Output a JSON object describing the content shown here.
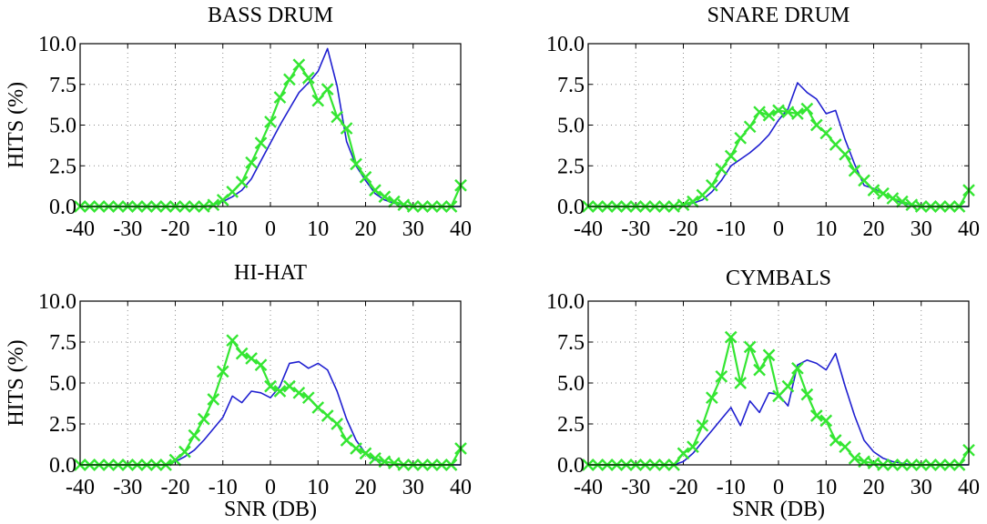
{
  "colors": {
    "blue_series": "#1f1fd0",
    "green_series": "#34e632",
    "axis": "#000000",
    "grid": "#8a8a8a"
  },
  "chart_data": [
    {
      "type": "line",
      "title": "BASS DRUM",
      "xlabel": "",
      "ylabel": "HITS (%)",
      "x_ticks": [
        "-40",
        "-30",
        "-20",
        "-10",
        "0",
        "10",
        "20",
        "30",
        "40"
      ],
      "y_ticks": [
        "0.0",
        "2.5",
        "5.0",
        "7.5",
        "10.0"
      ],
      "xlim": [
        -40,
        40
      ],
      "ylim": [
        0,
        10
      ],
      "grid": true,
      "series": [
        {
          "color": "#1f1fd0",
          "marker": "none",
          "x": [
            -40,
            -38,
            -36,
            -34,
            -32,
            -30,
            -28,
            -26,
            -24,
            -22,
            -20,
            -18,
            -16,
            -14,
            -12,
            -10,
            -8,
            -6,
            -4,
            -2,
            0,
            2,
            4,
            6,
            8,
            10,
            12,
            14,
            16,
            18,
            20,
            22,
            24,
            26,
            28,
            30,
            32,
            34,
            36,
            38,
            40
          ],
          "y": [
            0,
            0,
            0,
            0,
            0,
            0,
            0,
            0,
            0,
            0,
            0,
            0,
            0,
            0,
            0.1,
            0.3,
            0.6,
            1.0,
            1.7,
            2.8,
            3.9,
            5.0,
            6.0,
            7.0,
            7.6,
            8.3,
            9.7,
            7.4,
            4.0,
            2.5,
            1.6,
            0.8,
            0.4,
            0.2,
            0.1,
            0,
            0,
            0,
            0,
            0,
            0
          ]
        },
        {
          "color": "#34e632",
          "marker": "x",
          "x": [
            -40,
            -38,
            -36,
            -34,
            -32,
            -30,
            -28,
            -26,
            -24,
            -22,
            -20,
            -18,
            -16,
            -14,
            -12,
            -10,
            -8,
            -6,
            -4,
            -2,
            0,
            2,
            4,
            6,
            8,
            10,
            12,
            14,
            16,
            18,
            20,
            22,
            24,
            26,
            28,
            30,
            32,
            34,
            36,
            38,
            40
          ],
          "y": [
            0,
            0,
            0,
            0,
            0,
            0,
            0,
            0,
            0,
            0,
            0,
            0,
            0,
            0,
            0.1,
            0.4,
            0.9,
            1.5,
            2.7,
            3.9,
            5.2,
            6.7,
            7.8,
            8.7,
            7.9,
            6.5,
            7.2,
            5.5,
            4.8,
            2.6,
            1.8,
            1.0,
            0.6,
            0.3,
            0.1,
            0,
            0,
            0,
            0,
            0,
            1.3
          ]
        }
      ]
    },
    {
      "type": "line",
      "title": "SNARE DRUM",
      "xlabel": "",
      "ylabel": "",
      "x_ticks": [
        "-40",
        "-30",
        "-20",
        "-10",
        "0",
        "10",
        "20",
        "30",
        "40"
      ],
      "y_ticks": [
        "0.0",
        "2.5",
        "5.0",
        "7.5",
        "10.0"
      ],
      "xlim": [
        -40,
        40
      ],
      "ylim": [
        0,
        10
      ],
      "grid": true,
      "series": [
        {
          "color": "#1f1fd0",
          "marker": "none",
          "x": [
            -40,
            -38,
            -36,
            -34,
            -32,
            -30,
            -28,
            -26,
            -24,
            -22,
            -20,
            -18,
            -16,
            -14,
            -12,
            -10,
            -8,
            -6,
            -4,
            -2,
            0,
            2,
            4,
            6,
            8,
            10,
            12,
            14,
            16,
            18,
            20,
            22,
            24,
            26,
            28,
            30,
            32,
            34,
            36,
            38,
            40
          ],
          "y": [
            0,
            0,
            0,
            0,
            0,
            0,
            0,
            0,
            0,
            0,
            0.1,
            0.2,
            0.4,
            0.9,
            1.6,
            2.5,
            2.9,
            3.3,
            3.8,
            4.4,
            5.3,
            6.0,
            7.6,
            7.0,
            6.6,
            5.7,
            5.9,
            4.1,
            2.6,
            1.3,
            1.1,
            0.8,
            0.5,
            0.2,
            0.1,
            0,
            0,
            0,
            0,
            0,
            0
          ]
        },
        {
          "color": "#34e632",
          "marker": "x",
          "x": [
            -40,
            -38,
            -36,
            -34,
            -32,
            -30,
            -28,
            -26,
            -24,
            -22,
            -20,
            -18,
            -16,
            -14,
            -12,
            -10,
            -8,
            -6,
            -4,
            -2,
            0,
            2,
            4,
            6,
            8,
            10,
            12,
            14,
            16,
            18,
            20,
            22,
            24,
            26,
            28,
            30,
            32,
            34,
            36,
            38,
            40
          ],
          "y": [
            0,
            0,
            0,
            0,
            0,
            0,
            0,
            0,
            0,
            0,
            0.1,
            0.3,
            0.7,
            1.3,
            2.3,
            3.1,
            4.2,
            4.9,
            5.8,
            5.6,
            5.9,
            5.8,
            5.7,
            6.0,
            5.0,
            4.5,
            3.8,
            3.2,
            2.2,
            1.6,
            1.0,
            0.8,
            0.5,
            0.3,
            0.1,
            0,
            0,
            0,
            0,
            0,
            1.0
          ]
        }
      ]
    },
    {
      "type": "line",
      "title": "HI-HAT",
      "xlabel": "SNR (DB)",
      "ylabel": "HITS (%)",
      "x_ticks": [
        "-40",
        "-30",
        "-20",
        "-10",
        "0",
        "10",
        "20",
        "30",
        "40"
      ],
      "y_ticks": [
        "0.0",
        "2.5",
        "5.0",
        "7.5",
        "10.0"
      ],
      "xlim": [
        -40,
        40
      ],
      "ylim": [
        0,
        10
      ],
      "grid": true,
      "series": [
        {
          "color": "#1f1fd0",
          "marker": "none",
          "x": [
            -40,
            -38,
            -36,
            -34,
            -32,
            -30,
            -28,
            -26,
            -24,
            -22,
            -20,
            -18,
            -16,
            -14,
            -12,
            -10,
            -8,
            -6,
            -4,
            -2,
            0,
            2,
            4,
            6,
            8,
            10,
            12,
            14,
            16,
            18,
            20,
            22,
            24,
            26,
            28,
            30,
            32,
            34,
            36,
            38,
            40
          ],
          "y": [
            0,
            0,
            0,
            0,
            0,
            0,
            0,
            0,
            0,
            0,
            0.2,
            0.5,
            0.9,
            1.5,
            2.2,
            2.9,
            4.2,
            3.8,
            4.5,
            4.4,
            4.1,
            4.8,
            6.2,
            6.3,
            5.9,
            6.2,
            5.8,
            4.5,
            2.8,
            1.5,
            0.7,
            0.3,
            0.2,
            0.1,
            0,
            0,
            0,
            0,
            0,
            0,
            0
          ]
        },
        {
          "color": "#34e632",
          "marker": "x",
          "x": [
            -40,
            -38,
            -36,
            -34,
            -32,
            -30,
            -28,
            -26,
            -24,
            -22,
            -20,
            -18,
            -16,
            -14,
            -12,
            -10,
            -8,
            -6,
            -4,
            -2,
            0,
            2,
            4,
            6,
            8,
            10,
            12,
            14,
            16,
            18,
            20,
            22,
            24,
            26,
            28,
            30,
            32,
            34,
            36,
            38,
            40
          ],
          "y": [
            0,
            0,
            0,
            0,
            0,
            0,
            0,
            0,
            0,
            0,
            0.3,
            0.8,
            1.8,
            2.8,
            4.0,
            5.7,
            7.6,
            6.8,
            6.5,
            6.1,
            4.8,
            4.5,
            4.8,
            4.4,
            4.1,
            3.5,
            3.0,
            2.5,
            1.5,
            1.0,
            0.7,
            0.4,
            0.2,
            0.1,
            0,
            0,
            0,
            0,
            0,
            0,
            1.0
          ]
        }
      ]
    },
    {
      "type": "line",
      "title": "CYMBALS",
      "xlabel": "SNR (DB)",
      "ylabel": "",
      "x_ticks": [
        "-40",
        "-30",
        "-20",
        "-10",
        "0",
        "10",
        "20",
        "30",
        "40"
      ],
      "y_ticks": [
        "0.0",
        "2.5",
        "5.0",
        "7.5",
        "10.0"
      ],
      "xlim": [
        -40,
        40
      ],
      "ylim": [
        0,
        10
      ],
      "grid": true,
      "series": [
        {
          "color": "#1f1fd0",
          "marker": "none",
          "x": [
            -40,
            -38,
            -36,
            -34,
            -32,
            -30,
            -28,
            -26,
            -24,
            -22,
            -20,
            -18,
            -16,
            -14,
            -12,
            -10,
            -8,
            -6,
            -4,
            -2,
            0,
            2,
            4,
            6,
            8,
            10,
            12,
            14,
            16,
            18,
            20,
            22,
            24,
            26,
            28,
            30,
            32,
            34,
            36,
            38,
            40
          ],
          "y": [
            0,
            0,
            0,
            0,
            0,
            0,
            0,
            0,
            0,
            0,
            0.2,
            0.7,
            1.4,
            2.1,
            2.8,
            3.5,
            2.4,
            3.9,
            3.2,
            4.4,
            4.3,
            3.6,
            6.1,
            6.4,
            6.2,
            5.8,
            6.8,
            4.8,
            3.0,
            1.5,
            0.8,
            0.4,
            0.2,
            0.1,
            0,
            0,
            0,
            0,
            0,
            0,
            0
          ]
        },
        {
          "color": "#34e632",
          "marker": "x",
          "x": [
            -40,
            -38,
            -36,
            -34,
            -32,
            -30,
            -28,
            -26,
            -24,
            -22,
            -20,
            -18,
            -16,
            -14,
            -12,
            -10,
            -8,
            -6,
            -4,
            -2,
            0,
            2,
            4,
            6,
            8,
            10,
            12,
            14,
            16,
            18,
            20,
            22,
            24,
            26,
            28,
            30,
            32,
            34,
            36,
            38,
            40
          ],
          "y": [
            0,
            0,
            0,
            0,
            0,
            0,
            0,
            0,
            0,
            0,
            0.7,
            1.1,
            2.4,
            4.1,
            5.4,
            7.8,
            5.0,
            7.2,
            5.8,
            6.7,
            4.2,
            4.8,
            5.9,
            4.3,
            3.0,
            2.7,
            1.5,
            1.1,
            0.4,
            0.2,
            0.1,
            0,
            0,
            0,
            0,
            0,
            0,
            0,
            0,
            0,
            0.9
          ]
        }
      ]
    }
  ]
}
